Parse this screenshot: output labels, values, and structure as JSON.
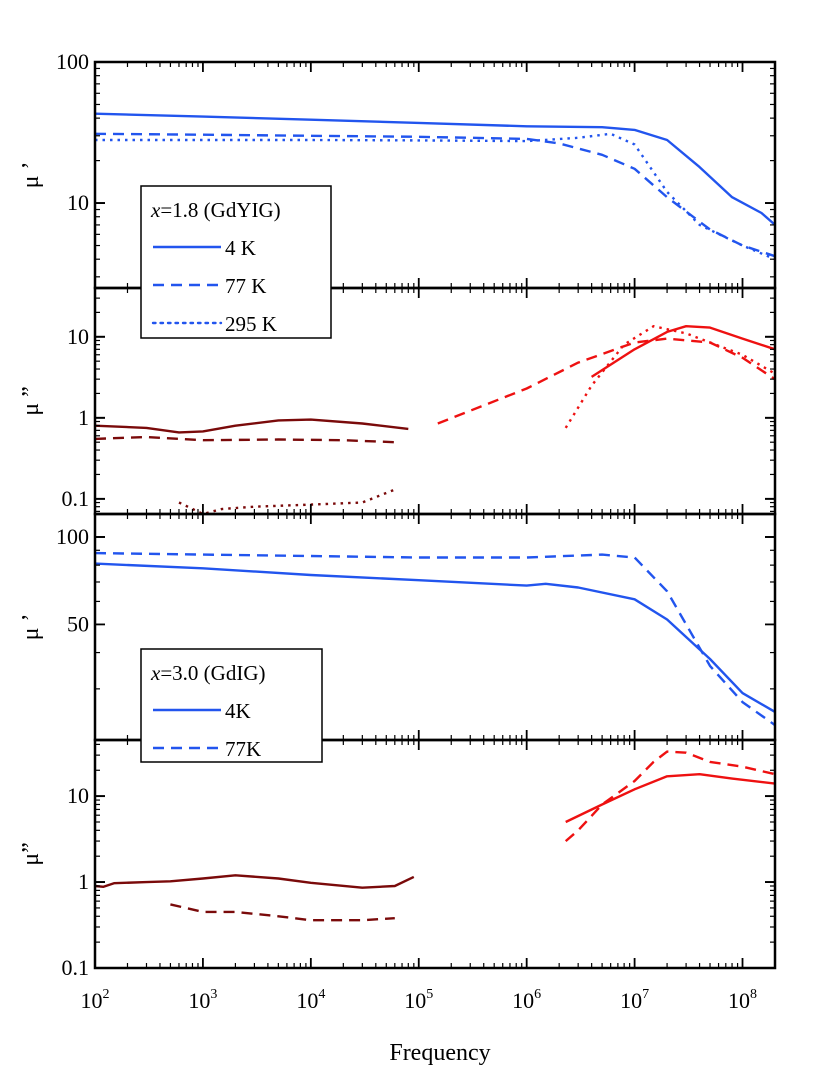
{
  "chart_data": {
    "type": "line",
    "xlabel": "Frequency",
    "xscale": "log",
    "xlim": [
      100,
      200000000
    ],
    "x_ticks": [
      {
        "base": "10",
        "exp": "2",
        "value": 100
      },
      {
        "base": "10",
        "exp": "3",
        "value": 1000
      },
      {
        "base": "10",
        "exp": "4",
        "value": 10000
      },
      {
        "base": "10",
        "exp": "5",
        "value": 100000
      },
      {
        "base": "10",
        "exp": "6",
        "value": 1000000
      },
      {
        "base": "10",
        "exp": "7",
        "value": 10000000
      },
      {
        "base": "10",
        "exp": "8",
        "value": 100000000
      }
    ],
    "colors": {
      "mu_real": "#2255ee",
      "mu_imag_high": "#ee1111",
      "mu_imag_low": "#7a0a0a"
    },
    "panels": [
      {
        "id": "p1",
        "ylabel": "μ ’",
        "ylim": [
          2.5,
          100
        ],
        "yticks": [
          {
            "label": "100",
            "value": 100
          },
          {
            "label": "10",
            "value": 10
          }
        ],
        "series": [
          {
            "name": "4 K",
            "style": "solid",
            "color": "#2255ee",
            "points": [
              [
                100,
                43
              ],
              [
                1000,
                41
              ],
              [
                10000,
                39
              ],
              [
                100000,
                37
              ],
              [
                1000000,
                35
              ],
              [
                5000000,
                34.5
              ],
              [
                10000000,
                33
              ],
              [
                20000000,
                28
              ],
              [
                40000000,
                18
              ],
              [
                80000000,
                11
              ],
              [
                150000000,
                8.5
              ],
              [
                200000000,
                7
              ]
            ]
          },
          {
            "name": "77 K",
            "style": "dashed",
            "color": "#2255ee",
            "points": [
              [
                100,
                31
              ],
              [
                1000,
                30.5
              ],
              [
                10000,
                30
              ],
              [
                100000,
                29.5
              ],
              [
                1000000,
                28.5
              ],
              [
                2000000,
                26.5
              ],
              [
                5000000,
                22
              ],
              [
                10000000,
                17.5
              ],
              [
                20000000,
                11
              ],
              [
                50000000,
                6.5
              ],
              [
                100000000,
                5
              ],
              [
                200000000,
                4.2
              ]
            ]
          },
          {
            "name": "295 K",
            "style": "dotted",
            "color": "#2255ee",
            "points": [
              [
                100,
                28
              ],
              [
                1000,
                28
              ],
              [
                10000,
                28
              ],
              [
                100000,
                27.8
              ],
              [
                1000000,
                27.5
              ],
              [
                3000000,
                29
              ],
              [
                6000000,
                31
              ],
              [
                10000000,
                26
              ],
              [
                20000000,
                12
              ],
              [
                40000000,
                7
              ],
              [
                100000000,
                5
              ],
              [
                200000000,
                4
              ]
            ]
          }
        ]
      },
      {
        "id": "p2",
        "ylabel": "μ ”",
        "ylim": [
          0.065,
          40
        ],
        "yticks": [
          {
            "label": "10",
            "value": 10
          },
          {
            "label": "1",
            "value": 1
          },
          {
            "label": "0.1",
            "value": 0.1
          }
        ],
        "series": [
          {
            "name": "4 K low",
            "style": "solid",
            "color": "#7a0a0a",
            "points": [
              [
                100,
                0.8
              ],
              [
                300,
                0.75
              ],
              [
                600,
                0.66
              ],
              [
                1000,
                0.68
              ],
              [
                2000,
                0.8
              ],
              [
                5000,
                0.93
              ],
              [
                10000,
                0.95
              ],
              [
                30000,
                0.85
              ],
              [
                80000,
                0.73
              ]
            ]
          },
          {
            "name": "77 K low",
            "style": "dashed",
            "color": "#7a0a0a",
            "points": [
              [
                100,
                0.55
              ],
              [
                300,
                0.58
              ],
              [
                1000,
                0.53
              ],
              [
                5000,
                0.54
              ],
              [
                20000,
                0.53
              ],
              [
                60000,
                0.5
              ]
            ]
          },
          {
            "name": "295 K low",
            "style": "dotted",
            "color": "#7a0a0a",
            "points": [
              [
                600,
                0.09
              ],
              [
                1000,
                0.065
              ],
              [
                1500,
                0.075
              ],
              [
                3000,
                0.08
              ],
              [
                10000,
                0.085
              ],
              [
                30000,
                0.09
              ],
              [
                60000,
                0.13
              ]
            ]
          },
          {
            "name": "4 K high",
            "style": "solid",
            "color": "#ee1111",
            "points": [
              [
                4000000,
                3.2
              ],
              [
                10000000,
                7
              ],
              [
                20000000,
                11.5
              ],
              [
                30000000,
                13.5
              ],
              [
                50000000,
                13
              ],
              [
                100000000,
                9.5
              ],
              [
                200000000,
                7
              ]
            ]
          },
          {
            "name": "77 K high",
            "style": "dashed",
            "color": "#ee1111",
            "points": [
              [
                150000,
                0.85
              ],
              [
                1000000,
                2.3
              ],
              [
                3000000,
                4.8
              ],
              [
                10000000,
                8.5
              ],
              [
                20000000,
                9.5
              ],
              [
                50000000,
                8.5
              ],
              [
                100000000,
                5.5
              ],
              [
                200000000,
                3
              ]
            ]
          },
          {
            "name": "295 K high",
            "style": "dotted",
            "color": "#ee1111",
            "points": [
              [
                2300000,
                0.75
              ],
              [
                4000000,
                2.5
              ],
              [
                8000000,
                8
              ],
              [
                15000000,
                13.5
              ],
              [
                30000000,
                11
              ],
              [
                100000000,
                6
              ],
              [
                200000000,
                3.5
              ]
            ]
          }
        ]
      },
      {
        "id": "p3",
        "ylabel": "μ ’",
        "ylim": [
          20,
          120
        ],
        "yticks": [
          {
            "label": "100",
            "value": 100
          },
          {
            "label": "50",
            "value": 50
          }
        ],
        "series": [
          {
            "name": "4K",
            "style": "solid",
            "color": "#2255ee",
            "points": [
              [
                100,
                81
              ],
              [
                1000,
                78
              ],
              [
                10000,
                74
              ],
              [
                100000,
                71
              ],
              [
                1000000,
                68
              ],
              [
                1500000,
                69
              ],
              [
                3000000,
                67
              ],
              [
                10000000,
                61
              ],
              [
                20000000,
                52
              ],
              [
                50000000,
                38
              ],
              [
                100000000,
                29
              ],
              [
                200000000,
                25
              ]
            ]
          },
          {
            "name": "77K",
            "style": "dashed",
            "color": "#2255ee",
            "points": [
              [
                100,
                88
              ],
              [
                1000,
                87
              ],
              [
                10000,
                86
              ],
              [
                100000,
                85
              ],
              [
                1000000,
                85
              ],
              [
                5000000,
                87
              ],
              [
                10000000,
                85
              ],
              [
                20000000,
                65
              ],
              [
                50000000,
                36
              ],
              [
                100000000,
                27
              ],
              [
                200000000,
                22.5
              ]
            ]
          }
        ]
      },
      {
        "id": "p4",
        "ylabel": "μ”",
        "ylim": [
          0.1,
          45
        ],
        "yticks": [
          {
            "label": "10",
            "value": 10
          },
          {
            "label": "1",
            "value": 1
          },
          {
            "label": "0.1",
            "value": 0.1
          }
        ],
        "series": [
          {
            "name": "4K low",
            "style": "solid",
            "color": "#7a0a0a",
            "points": [
              [
                100,
                0.9
              ],
              [
                120,
                0.88
              ],
              [
                150,
                0.97
              ],
              [
                300,
                1
              ],
              [
                500,
                1.02
              ],
              [
                1000,
                1.1
              ],
              [
                2000,
                1.2
              ],
              [
                5000,
                1.1
              ],
              [
                10000,
                0.98
              ],
              [
                30000,
                0.86
              ],
              [
                60000,
                0.9
              ],
              [
                90000,
                1.15
              ]
            ]
          },
          {
            "name": "77K low",
            "style": "dashed",
            "color": "#7a0a0a",
            "points": [
              [
                500,
                0.55
              ],
              [
                1000,
                0.45
              ],
              [
                2000,
                0.45
              ],
              [
                5000,
                0.4
              ],
              [
                10000,
                0.36
              ],
              [
                30000,
                0.36
              ],
              [
                60000,
                0.38
              ]
            ]
          },
          {
            "name": "4K high",
            "style": "solid",
            "color": "#ee1111",
            "points": [
              [
                2300000,
                5
              ],
              [
                5000000,
                8
              ],
              [
                10000000,
                12
              ],
              [
                20000000,
                17
              ],
              [
                40000000,
                18
              ],
              [
                80000000,
                16
              ],
              [
                200000000,
                14
              ]
            ]
          },
          {
            "name": "77K high",
            "style": "dashed",
            "color": "#ee1111",
            "points": [
              [
                2300000,
                3
              ],
              [
                3000000,
                4
              ],
              [
                5000000,
                8
              ],
              [
                10000000,
                15
              ],
              [
                15000000,
                25
              ],
              [
                20000000,
                33
              ],
              [
                30000000,
                32
              ],
              [
                50000000,
                25
              ],
              [
                100000000,
                22
              ],
              [
                200000000,
                18
              ]
            ]
          }
        ]
      }
    ],
    "legends": [
      {
        "x_var": "x",
        "title": "=1.8 (GdYIG)",
        "placement": "left, across panels 1-2",
        "entries": [
          {
            "label": "4 K",
            "style": "solid"
          },
          {
            "label": "77 K",
            "style": "dashed"
          },
          {
            "label": "295 K",
            "style": "dotted"
          }
        ]
      },
      {
        "x_var": "x",
        "title": "=3.0 (GdIG)",
        "placement": "left, across panels 3-4",
        "entries": [
          {
            "label": "4K",
            "style": "solid"
          },
          {
            "label": "77K",
            "style": "dashed"
          }
        ]
      }
    ]
  }
}
